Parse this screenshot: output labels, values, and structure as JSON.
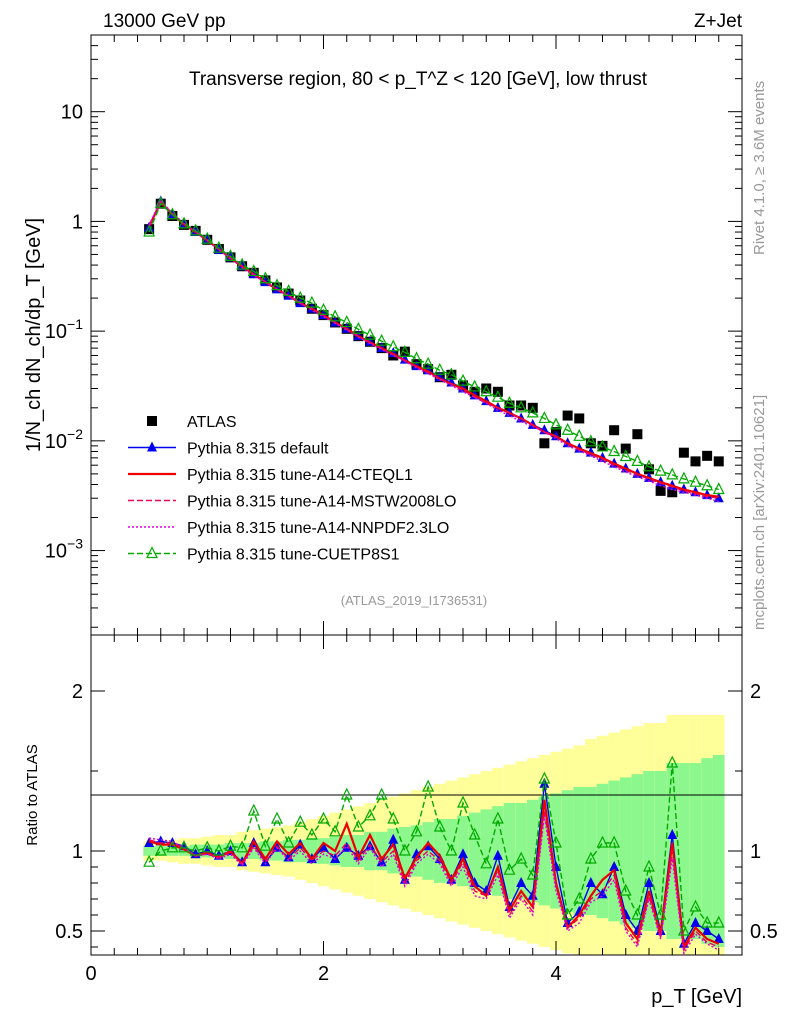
{
  "header": {
    "energy_label": "13000 GeV pp",
    "process_label": "Z+Jet"
  },
  "side_labels": {
    "rivet": "Rivet 4.1.0, ≥ 3.6M events",
    "source": "mcplots.cern.ch [arXiv:2401.10621]"
  },
  "chart_data": [
    {
      "type": "line",
      "panel": "main",
      "title": "Transverse region, 80 < p_T^Z < 120 [GeV], low thrust",
      "ylabel": "1/N_ch dN_ch/dp_T [GeV]",
      "yscale": "log",
      "ylim": [
        0.00017,
        50
      ],
      "xlim": [
        0,
        5.6
      ],
      "ytick_labels": [
        "10",
        "1",
        "10^-1",
        "10^-2",
        "10^-3"
      ],
      "reference_label": "(ATLAS_2019_I1736531)",
      "x": [
        0.5,
        0.6,
        0.7,
        0.8,
        0.9,
        1.0,
        1.1,
        1.2,
        1.3,
        1.4,
        1.5,
        1.6,
        1.7,
        1.8,
        1.9,
        2.0,
        2.1,
        2.2,
        2.3,
        2.4,
        2.5,
        2.6,
        2.7,
        2.8,
        2.9,
        3.0,
        3.1,
        3.2,
        3.3,
        3.4,
        3.5,
        3.6,
        3.7,
        3.8,
        3.9,
        4.0,
        4.1,
        4.2,
        4.3,
        4.4,
        4.5,
        4.6,
        4.7,
        4.8,
        4.9,
        5.0,
        5.1,
        5.2,
        5.3,
        5.4
      ],
      "series": [
        {
          "name": "ATLAS",
          "color": "#000000",
          "marker": "square",
          "dash": "none",
          "values": [
            0.85,
            1.45,
            1.12,
            0.93,
            0.82,
            0.68,
            0.56,
            0.47,
            0.39,
            0.34,
            0.29,
            0.25,
            0.22,
            0.19,
            0.16,
            0.14,
            0.12,
            0.105,
            0.09,
            0.08,
            0.07,
            0.06,
            0.065,
            0.05,
            0.045,
            0.038,
            0.04,
            0.032,
            0.028,
            0.03,
            0.028,
            0.021,
            0.021,
            0.02,
            0.0095,
            0.012,
            0.017,
            0.016,
            0.0095,
            0.009,
            0.0125,
            0.0085,
            0.0115,
            0.0055,
            0.0035,
            0.0034,
            0.0078,
            0.0065,
            0.0073,
            0.0065
          ]
        },
        {
          "name": "Pythia 8.315 default",
          "color": "#0000ee",
          "marker": "triangle",
          "dash": "none",
          "values": [
            0.88,
            1.52,
            1.15,
            0.95,
            0.8,
            0.68,
            0.55,
            0.47,
            0.39,
            0.33,
            0.28,
            0.24,
            0.21,
            0.18,
            0.16,
            0.14,
            0.12,
            0.105,
            0.09,
            0.08,
            0.07,
            0.063,
            0.055,
            0.048,
            0.044,
            0.038,
            0.034,
            0.03,
            0.026,
            0.023,
            0.02,
            0.018,
            0.016,
            0.014,
            0.0125,
            0.011,
            0.0095,
            0.0085,
            0.0078,
            0.007,
            0.0062,
            0.0056,
            0.005,
            0.0046,
            0.0042,
            0.0039,
            0.0036,
            0.0034,
            0.0032,
            0.003
          ]
        },
        {
          "name": "Pythia 8.315 tune-A14-CTEQL1",
          "color": "#ee0000",
          "marker": "none",
          "dash": "none",
          "values": [
            0.9,
            1.5,
            1.16,
            0.94,
            0.8,
            0.67,
            0.56,
            0.46,
            0.39,
            0.33,
            0.28,
            0.24,
            0.21,
            0.18,
            0.16,
            0.14,
            0.12,
            0.105,
            0.09,
            0.079,
            0.07,
            0.062,
            0.054,
            0.048,
            0.043,
            0.037,
            0.033,
            0.03,
            0.026,
            0.023,
            0.02,
            0.018,
            0.016,
            0.014,
            0.012,
            0.011,
            0.0095,
            0.0085,
            0.0077,
            0.007,
            0.0062,
            0.0056,
            0.005,
            0.0046,
            0.0042,
            0.0039,
            0.0036,
            0.0034,
            0.0032,
            0.0031
          ]
        },
        {
          "name": "Pythia 8.315 tune-A14-MSTW2008LO",
          "color": "#ee0055",
          "marker": "none",
          "dash": "6,3",
          "values": [
            0.91,
            1.53,
            1.18,
            0.95,
            0.81,
            0.67,
            0.56,
            0.46,
            0.39,
            0.33,
            0.28,
            0.24,
            0.21,
            0.18,
            0.16,
            0.14,
            0.12,
            0.104,
            0.09,
            0.079,
            0.069,
            0.061,
            0.054,
            0.047,
            0.042,
            0.037,
            0.033,
            0.029,
            0.025,
            0.022,
            0.02,
            0.018,
            0.016,
            0.014,
            0.012,
            0.011,
            0.0093,
            0.0083,
            0.0075,
            0.0068,
            0.006,
            0.0054,
            0.0049,
            0.0045,
            0.0041,
            0.0038,
            0.0035,
            0.0033,
            0.0031,
            0.003
          ]
        },
        {
          "name": "Pythia 8.315 tune-A14-NNPDF2.3LO",
          "color": "#dd00dd",
          "marker": "none",
          "dash": "2,2",
          "values": [
            0.93,
            1.55,
            1.19,
            0.96,
            0.81,
            0.67,
            0.55,
            0.46,
            0.38,
            0.32,
            0.28,
            0.24,
            0.21,
            0.18,
            0.155,
            0.135,
            0.118,
            0.102,
            0.088,
            0.077,
            0.068,
            0.06,
            0.053,
            0.046,
            0.041,
            0.036,
            0.032,
            0.028,
            0.025,
            0.022,
            0.019,
            0.017,
            0.015,
            0.0135,
            0.012,
            0.0105,
            0.009,
            0.0081,
            0.0073,
            0.0065,
            0.0058,
            0.0052,
            0.0047,
            0.0043,
            0.0039,
            0.0036,
            0.0034,
            0.0032,
            0.003,
            0.0028
          ]
        },
        {
          "name": "Pythia 8.315 tune-CUETP8S1",
          "color": "#00aa00",
          "marker": "open-triangle",
          "dash": "6,3",
          "values": [
            0.8,
            1.45,
            1.15,
            0.95,
            0.82,
            0.69,
            0.57,
            0.48,
            0.4,
            0.35,
            0.3,
            0.26,
            0.23,
            0.2,
            0.18,
            0.155,
            0.135,
            0.12,
            0.104,
            0.092,
            0.081,
            0.072,
            0.064,
            0.056,
            0.05,
            0.044,
            0.04,
            0.035,
            0.031,
            0.028,
            0.025,
            0.022,
            0.02,
            0.018,
            0.016,
            0.014,
            0.0125,
            0.011,
            0.0098,
            0.0088,
            0.008,
            0.0072,
            0.0065,
            0.0058,
            0.0053,
            0.0049,
            0.0045,
            0.0042,
            0.0039,
            0.0036
          ]
        }
      ]
    },
    {
      "type": "line",
      "panel": "ratio",
      "ylabel": "Ratio to ATLAS",
      "xlabel": "p_T [GeV]",
      "xlim": [
        0,
        5.6
      ],
      "ylim": [
        0.35,
        2.35
      ],
      "xtick_labels": [
        "0",
        "2",
        "4"
      ],
      "ytick_labels": [
        "0.5",
        "1",
        "2"
      ],
      "x": [
        0.5,
        0.6,
        0.7,
        0.8,
        0.9,
        1.0,
        1.1,
        1.2,
        1.3,
        1.4,
        1.5,
        1.6,
        1.7,
        1.8,
        1.9,
        2.0,
        2.1,
        2.2,
        2.3,
        2.4,
        2.5,
        2.6,
        2.7,
        2.8,
        2.9,
        3.0,
        3.1,
        3.2,
        3.3,
        3.4,
        3.5,
        3.6,
        3.7,
        3.8,
        3.9,
        4.0,
        4.1,
        4.2,
        4.3,
        4.4,
        4.5,
        4.6,
        4.7,
        4.8,
        4.9,
        5.0,
        5.1,
        5.2,
        5.3,
        5.4
      ],
      "band_inner": [
        0.03,
        0.03,
        0.03,
        0.03,
        0.04,
        0.04,
        0.04,
        0.05,
        0.05,
        0.05,
        0.06,
        0.06,
        0.07,
        0.07,
        0.08,
        0.08,
        0.09,
        0.1,
        0.1,
        0.12,
        0.12,
        0.14,
        0.15,
        0.16,
        0.18,
        0.2,
        0.2,
        0.22,
        0.24,
        0.26,
        0.28,
        0.3,
        0.3,
        0.32,
        0.34,
        0.36,
        0.38,
        0.4,
        0.4,
        0.42,
        0.44,
        0.46,
        0.48,
        0.5,
        0.5,
        0.55,
        0.55,
        0.55,
        0.58,
        0.6
      ],
      "band_outer": [
        0.06,
        0.06,
        0.07,
        0.08,
        0.08,
        0.09,
        0.1,
        0.1,
        0.12,
        0.13,
        0.14,
        0.15,
        0.16,
        0.18,
        0.2,
        0.22,
        0.24,
        0.26,
        0.28,
        0.3,
        0.32,
        0.34,
        0.36,
        0.38,
        0.4,
        0.42,
        0.44,
        0.46,
        0.48,
        0.5,
        0.52,
        0.54,
        0.56,
        0.58,
        0.6,
        0.62,
        0.64,
        0.66,
        0.7,
        0.72,
        0.74,
        0.76,
        0.78,
        0.8,
        0.8,
        0.85,
        0.85,
        0.85,
        0.85,
        0.85
      ],
      "series": [
        {
          "name": "Pythia 8.315 default",
          "color": "#0000ee",
          "marker": "triangle",
          "dash": "none",
          "values": [
            1.05,
            1.06,
            1.05,
            1.03,
            0.98,
            1.0,
            0.97,
            1.0,
            0.93,
            1.05,
            0.93,
            1.02,
            0.96,
            1.04,
            0.95,
            1.02,
            0.95,
            1.02,
            0.97,
            1.03,
            0.93,
            1.07,
            0.82,
            0.98,
            1.03,
            0.95,
            0.82,
            0.98,
            0.8,
            0.75,
            0.97,
            0.65,
            0.8,
            0.72,
            1.42,
            0.9,
            0.55,
            0.62,
            0.8,
            0.73,
            0.9,
            0.6,
            0.5,
            0.8,
            0.5,
            1.1,
            0.42,
            0.55,
            0.5,
            0.45
          ]
        },
        {
          "name": "Pythia 8.315 tune-A14-CTEQL1",
          "color": "#ee0000",
          "marker": "none",
          "dash": "none",
          "values": [
            1.06,
            1.04,
            1.04,
            1.01,
            0.97,
            0.99,
            0.96,
            1.0,
            0.92,
            1.06,
            0.95,
            1.06,
            0.98,
            1.05,
            0.95,
            1.05,
            1.0,
            1.17,
            0.96,
            1.1,
            0.95,
            1.04,
            0.83,
            0.96,
            1.05,
            0.97,
            0.82,
            0.95,
            0.78,
            0.72,
            0.9,
            0.63,
            0.75,
            0.65,
            1.32,
            0.8,
            0.52,
            0.6,
            0.72,
            0.82,
            0.88,
            0.55,
            0.45,
            0.75,
            0.48,
            1.05,
            0.4,
            0.52,
            0.45,
            0.42
          ]
        },
        {
          "name": "Pythia 8.315 tune-A14-MSTW2008LO",
          "color": "#ee0055",
          "marker": "none",
          "dash": "6,3",
          "values": [
            1.07,
            1.05,
            1.05,
            1.02,
            0.97,
            0.98,
            0.96,
            0.99,
            0.92,
            1.03,
            0.93,
            1.03,
            0.95,
            1.02,
            0.94,
            1.0,
            0.97,
            1.05,
            0.94,
            1.04,
            0.93,
            1.0,
            0.8,
            0.94,
            1.0,
            0.94,
            0.8,
            0.93,
            0.75,
            0.72,
            0.88,
            0.6,
            0.72,
            0.62,
            1.25,
            0.78,
            0.52,
            0.58,
            0.7,
            0.75,
            0.85,
            0.52,
            0.42,
            0.72,
            0.46,
            1.0,
            0.38,
            0.5,
            0.43,
            0.4
          ]
        },
        {
          "name": "Pythia 8.315 tune-A14-NNPDF2.3LO",
          "color": "#dd00dd",
          "marker": "none",
          "dash": "2,2",
          "values": [
            1.08,
            1.07,
            1.06,
            1.02,
            0.97,
            0.98,
            0.95,
            0.98,
            0.91,
            1.02,
            0.92,
            1.02,
            0.94,
            1.0,
            0.92,
            0.98,
            0.95,
            1.03,
            0.92,
            1.02,
            0.9,
            0.98,
            0.78,
            0.92,
            0.98,
            0.92,
            0.78,
            0.9,
            0.72,
            0.7,
            0.85,
            0.58,
            0.7,
            0.6,
            1.22,
            0.75,
            0.5,
            0.55,
            0.68,
            0.72,
            0.82,
            0.5,
            0.4,
            0.7,
            0.45,
            0.95,
            0.36,
            0.48,
            0.42,
            0.38
          ]
        },
        {
          "name": "Pythia 8.315 tune-CUETP8S1",
          "color": "#00aa00",
          "marker": "open-triangle",
          "dash": "6,3",
          "values": [
            0.93,
            1.0,
            1.02,
            1.02,
            1.0,
            1.02,
            1.0,
            1.03,
            1.02,
            1.25,
            1.03,
            1.2,
            1.05,
            1.18,
            1.1,
            1.2,
            1.12,
            1.35,
            1.15,
            1.22,
            1.35,
            1.2,
            1.0,
            1.12,
            1.4,
            1.15,
            1.0,
            1.3,
            1.1,
            0.92,
            1.2,
            0.88,
            0.95,
            0.85,
            1.45,
            1.05,
            0.6,
            0.7,
            0.95,
            1.05,
            1.05,
            0.75,
            0.6,
            0.9,
            0.6,
            1.55,
            0.5,
            0.65,
            0.55,
            0.55
          ]
        }
      ]
    }
  ],
  "style": {
    "band_inner_color": "#8cf78c",
    "band_outer_color": "#ffff99"
  }
}
